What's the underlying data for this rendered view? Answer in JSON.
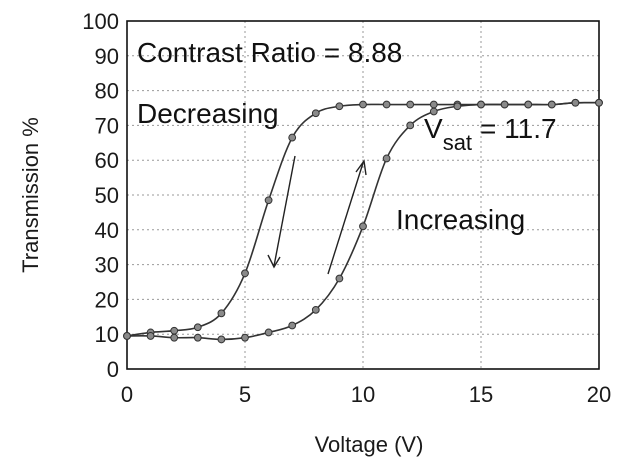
{
  "chart_data": {
    "type": "line",
    "xlabel": "Voltage (V)",
    "ylabel": "Transmission %",
    "xlim": [
      0,
      20
    ],
    "ylim": [
      0,
      100
    ],
    "x_ticks": [
      0,
      5,
      10,
      15,
      20
    ],
    "y_ticks": [
      0,
      10,
      20,
      30,
      40,
      50,
      60,
      70,
      80,
      90,
      100
    ],
    "grid": true,
    "annotations": {
      "contrast": "Contrast Ratio = 8.88",
      "decreasing": "Decreasing",
      "increasing": "Increasing",
      "vsat_v": "V",
      "vsat_sub": "sat",
      "vsat_value": "= 11.7"
    },
    "series": [
      {
        "x": [
          0,
          1,
          2,
          3,
          4,
          5,
          6,
          7,
          8,
          9,
          10,
          11,
          12,
          13,
          14,
          15,
          16,
          17,
          18,
          19,
          20
        ],
        "y": [
          9.5,
          10.5,
          11,
          12,
          16,
          27.5,
          48.5,
          66.5,
          73.5,
          75.5,
          76,
          76,
          76,
          76,
          76,
          76,
          76,
          76,
          76,
          76.5,
          76.5
        ]
      },
      {
        "x": [
          0,
          1,
          2,
          3,
          4,
          5,
          6,
          7,
          8,
          9,
          10,
          11,
          12,
          13,
          14,
          15,
          16,
          17,
          18,
          19,
          20
        ],
        "y": [
          9.5,
          9.5,
          9,
          9,
          8.5,
          9,
          10.5,
          12.5,
          17,
          26,
          41,
          60.5,
          70,
          74,
          75.5,
          76,
          76,
          76,
          76,
          76.5,
          76.5
        ]
      }
    ]
  }
}
